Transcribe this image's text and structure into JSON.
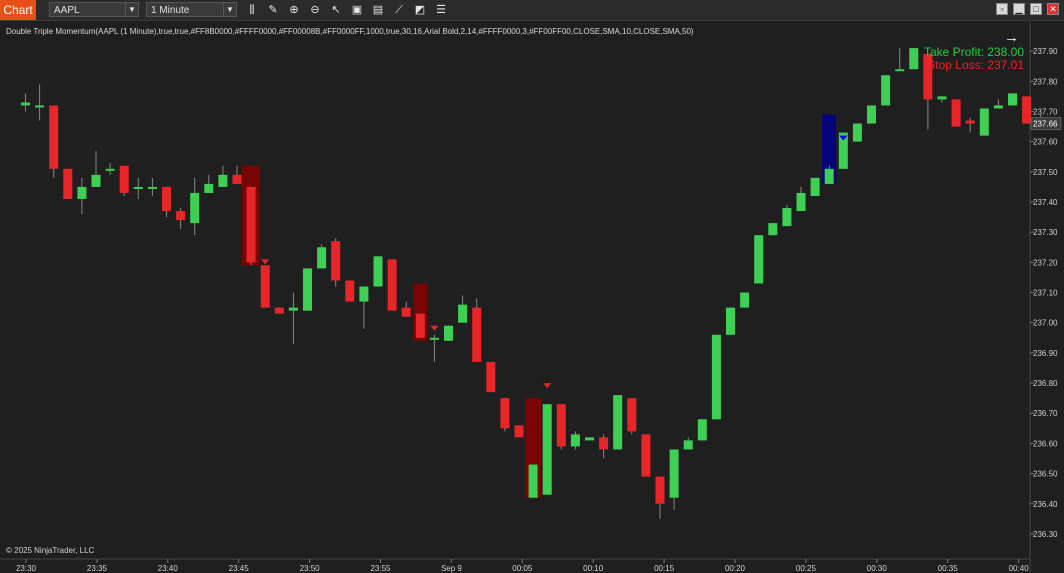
{
  "toolbar": {
    "tab_label": "Chart",
    "instrument": "AAPL",
    "interval": "1 Minute",
    "tools": [
      {
        "name": "bars-type-icon",
        "glyph": "⫼"
      },
      {
        "name": "drawing-tools-icon",
        "glyph": "✎"
      },
      {
        "name": "zoom-in-icon",
        "glyph": "⊕"
      },
      {
        "name": "zoom-out-icon",
        "glyph": "⊖"
      },
      {
        "name": "pointer-icon",
        "glyph": "↖"
      },
      {
        "name": "chart-trader-icon",
        "glyph": "▣"
      },
      {
        "name": "properties-icon",
        "glyph": "▤"
      },
      {
        "name": "indicators-icon",
        "glyph": "⟋"
      },
      {
        "name": "strategies-icon",
        "glyph": "◩"
      },
      {
        "name": "data-box-icon",
        "glyph": "☰"
      }
    ]
  },
  "window_buttons": [
    {
      "name": "window-tile-button",
      "glyph": "▫"
    },
    {
      "name": "minimize-button",
      "glyph": "▁"
    },
    {
      "name": "maximize-button",
      "glyph": "□"
    },
    {
      "name": "close-button",
      "glyph": "✕"
    }
  ],
  "indicator_label": "Double Triple Momentum(AAPL (1 Minute),true,true,#FF8B0000,#FFFF0000,#FF00008B,#FF0000FF,1000,true,30,16,Arial Bold,2,14,#FFFF0000,3,#FF00FF00,CLOSE,SMA,10,CLOSE,SMA,50)",
  "take_profit_label": "Take Profit: 238.00",
  "stop_loss_label": "Stop Loss: 237.01",
  "copyright": "© 2025 NinjaTrader, LLC",
  "colors": {
    "up": "#3ecf55",
    "down": "#e8262a",
    "bg": "#1f1f1f",
    "signal_dark_red": "#8b0000",
    "signal_dark_blue": "#00008b",
    "signal_blue": "#0000ff"
  },
  "chart_data": {
    "type": "candlestick",
    "ylim": [
      236.27,
      237.97
    ],
    "y_ticks": [
      "237.90",
      "237.80",
      "237.70",
      "237.60",
      "237.50",
      "237.40",
      "237.30",
      "237.20",
      "237.10",
      "237.00",
      "236.90",
      "236.80",
      "236.70",
      "236.60",
      "236.50",
      "236.40",
      "236.30"
    ],
    "x_ticks": [
      "23:30",
      "23:35",
      "23:40",
      "23:45",
      "23:50",
      "23:55",
      "Sep 9",
      "00:05",
      "00:10",
      "00:15",
      "00:20",
      "00:25",
      "00:30",
      "00:35",
      "00:40"
    ],
    "last_price": "237.66",
    "candles": [
      {
        "o": 237.72,
        "h": 237.76,
        "l": 237.7,
        "c": 237.73
      },
      {
        "o": 237.72,
        "h": 237.79,
        "l": 237.67,
        "c": 237.72
      },
      {
        "o": 237.72,
        "h": 237.72,
        "l": 237.48,
        "c": 237.51
      },
      {
        "o": 237.51,
        "h": 237.51,
        "l": 237.41,
        "c": 237.41
      },
      {
        "o": 237.41,
        "h": 237.48,
        "l": 237.36,
        "c": 237.45
      },
      {
        "o": 237.45,
        "h": 237.57,
        "l": 237.45,
        "c": 237.49
      },
      {
        "o": 237.51,
        "h": 237.53,
        "l": 237.49,
        "c": 237.51
      },
      {
        "o": 237.52,
        "h": 237.52,
        "l": 237.42,
        "c": 237.43
      },
      {
        "o": 237.45,
        "h": 237.48,
        "l": 237.41,
        "c": 237.45
      },
      {
        "o": 237.45,
        "h": 237.48,
        "l": 237.42,
        "c": 237.45
      },
      {
        "o": 237.45,
        "h": 237.45,
        "l": 237.35,
        "c": 237.37
      },
      {
        "o": 237.37,
        "h": 237.38,
        "l": 237.31,
        "c": 237.34
      },
      {
        "o": 237.33,
        "h": 237.48,
        "l": 237.29,
        "c": 237.43
      },
      {
        "o": 237.43,
        "h": 237.49,
        "l": 237.43,
        "c": 237.46
      },
      {
        "o": 237.45,
        "h": 237.52,
        "l": 237.45,
        "c": 237.49
      },
      {
        "o": 237.49,
        "h": 237.52,
        "l": 237.46,
        "c": 237.46
      },
      {
        "o": 237.45,
        "h": 237.45,
        "l": 237.19,
        "c": 237.2
      },
      {
        "o": 237.19,
        "h": 237.19,
        "l": 237.05,
        "c": 237.05
      },
      {
        "o": 237.05,
        "h": 237.05,
        "l": 237.03,
        "c": 237.03
      },
      {
        "o": 237.04,
        "h": 237.1,
        "l": 236.93,
        "c": 237.05
      },
      {
        "o": 237.04,
        "h": 237.18,
        "l": 237.04,
        "c": 237.18
      },
      {
        "o": 237.18,
        "h": 237.26,
        "l": 237.18,
        "c": 237.25
      },
      {
        "o": 237.27,
        "h": 237.28,
        "l": 237.12,
        "c": 237.14
      },
      {
        "o": 237.14,
        "h": 237.14,
        "l": 237.07,
        "c": 237.07
      },
      {
        "o": 237.07,
        "h": 237.12,
        "l": 236.98,
        "c": 237.12
      },
      {
        "o": 237.12,
        "h": 237.22,
        "l": 237.12,
        "c": 237.22
      },
      {
        "o": 237.21,
        "h": 237.21,
        "l": 237.04,
        "c": 237.04
      },
      {
        "o": 237.05,
        "h": 237.07,
        "l": 237.02,
        "c": 237.02
      },
      {
        "o": 237.03,
        "h": 237.03,
        "l": 236.95,
        "c": 236.95
      },
      {
        "o": 236.95,
        "h": 236.96,
        "l": 236.87,
        "c": 236.95
      },
      {
        "o": 236.94,
        "h": 236.99,
        "l": 236.94,
        "c": 236.99
      },
      {
        "o": 237.0,
        "h": 237.09,
        "l": 237.0,
        "c": 237.06
      },
      {
        "o": 237.05,
        "h": 237.08,
        "l": 236.87,
        "c": 236.87
      },
      {
        "o": 236.87,
        "h": 236.87,
        "l": 236.77,
        "c": 236.77
      },
      {
        "o": 236.75,
        "h": 236.75,
        "l": 236.64,
        "c": 236.65
      },
      {
        "o": 236.66,
        "h": 236.66,
        "l": 236.62,
        "c": 236.62
      },
      {
        "o": 236.42,
        "h": 236.53,
        "l": 236.42,
        "c": 236.53
      },
      {
        "o": 236.43,
        "h": 236.73,
        "l": 236.43,
        "c": 236.73
      },
      {
        "o": 236.73,
        "h": 236.73,
        "l": 236.58,
        "c": 236.59
      },
      {
        "o": 236.59,
        "h": 236.64,
        "l": 236.58,
        "c": 236.63
      },
      {
        "o": 236.61,
        "h": 236.62,
        "l": 236.61,
        "c": 236.62
      },
      {
        "o": 236.62,
        "h": 236.63,
        "l": 236.55,
        "c": 236.58
      },
      {
        "o": 236.58,
        "h": 236.76,
        "l": 236.58,
        "c": 236.76
      },
      {
        "o": 236.75,
        "h": 236.75,
        "l": 236.63,
        "c": 236.64
      },
      {
        "o": 236.63,
        "h": 236.63,
        "l": 236.49,
        "c": 236.49
      },
      {
        "o": 236.49,
        "h": 236.49,
        "l": 236.35,
        "c": 236.4
      },
      {
        "o": 236.42,
        "h": 236.58,
        "l": 236.38,
        "c": 236.58
      },
      {
        "o": 236.58,
        "h": 236.62,
        "l": 236.58,
        "c": 236.61
      },
      {
        "o": 236.61,
        "h": 236.68,
        "l": 236.61,
        "c": 236.68
      },
      {
        "o": 236.68,
        "h": 236.96,
        "l": 236.68,
        "c": 236.96
      },
      {
        "o": 236.96,
        "h": 237.05,
        "l": 236.96,
        "c": 237.05
      },
      {
        "o": 237.05,
        "h": 237.1,
        "l": 237.05,
        "c": 237.1
      },
      {
        "o": 237.13,
        "h": 237.29,
        "l": 237.13,
        "c": 237.29
      },
      {
        "o": 237.29,
        "h": 237.33,
        "l": 237.29,
        "c": 237.33
      },
      {
        "o": 237.32,
        "h": 237.39,
        "l": 237.32,
        "c": 237.38
      },
      {
        "o": 237.37,
        "h": 237.45,
        "l": 237.37,
        "c": 237.43
      },
      {
        "o": 237.42,
        "h": 237.48,
        "l": 237.42,
        "c": 237.48
      },
      {
        "o": 237.46,
        "h": 237.52,
        "l": 237.46,
        "c": 237.51
      },
      {
        "o": 237.51,
        "h": 237.63,
        "l": 237.51,
        "c": 237.63
      },
      {
        "o": 237.6,
        "h": 237.66,
        "l": 237.6,
        "c": 237.66
      },
      {
        "o": 237.66,
        "h": 237.72,
        "l": 237.66,
        "c": 237.72
      },
      {
        "o": 237.72,
        "h": 237.82,
        "l": 237.72,
        "c": 237.82
      },
      {
        "o": 237.84,
        "h": 237.91,
        "l": 237.84,
        "c": 237.84
      },
      {
        "o": 237.84,
        "h": 237.91,
        "l": 237.84,
        "c": 237.91
      },
      {
        "o": 237.89,
        "h": 237.89,
        "l": 237.64,
        "c": 237.74
      },
      {
        "o": 237.74,
        "h": 237.75,
        "l": 237.73,
        "c": 237.75
      },
      {
        "o": 237.74,
        "h": 237.74,
        "l": 237.65,
        "c": 237.65
      },
      {
        "o": 237.67,
        "h": 237.68,
        "l": 237.63,
        "c": 237.66
      },
      {
        "o": 237.62,
        "h": 237.71,
        "l": 237.62,
        "c": 237.71
      },
      {
        "o": 237.71,
        "h": 237.74,
        "l": 237.71,
        "c": 237.72
      },
      {
        "o": 237.72,
        "h": 237.76,
        "l": 237.72,
        "c": 237.76
      },
      {
        "o": 237.75,
        "h": 237.75,
        "l": 237.66,
        "c": 237.66
      },
      {
        "o": 237.67,
        "h": 237.69,
        "l": 237.66,
        "c": 237.66
      }
    ]
  }
}
